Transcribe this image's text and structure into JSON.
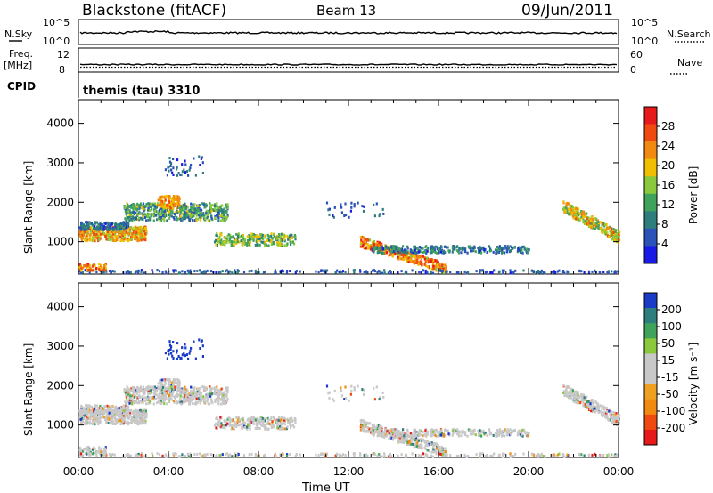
{
  "header": {
    "radar": "Blackstone (fitACF)",
    "beam": "Beam 13",
    "date": "09/Jun/2011"
  },
  "top_panels": {
    "nsky_label": "N.Sky",
    "nsky_ticks": [
      "10^5",
      "10^0"
    ],
    "nsearch_label": "N.Search",
    "nsearch_ticks": [
      "10^5",
      "10^0"
    ],
    "freq_label": "Freq.",
    "freq_unit": "[MHz]",
    "freq_ticks": [
      "12",
      "8"
    ],
    "nave_label": "Nave",
    "nave_ticks": [
      "60",
      "0"
    ],
    "cpid_label": "CPID",
    "cpid_value": "themis (tau) 3310"
  },
  "colors": {
    "power_scale": [
      "#1a1ae6",
      "#2a52b8",
      "#2f7e7e",
      "#3fa35c",
      "#8ac83c",
      "#f0c000",
      "#f38a10",
      "#f04a10",
      "#e61a1a"
    ],
    "velocity_scale": [
      "#e61a1a",
      "#f04a10",
      "#f38a10",
      "#f0a020",
      "#c8c8c8",
      "#c8c8c8",
      "#8ac83c",
      "#3fa35c",
      "#2f7e7e",
      "#1a3ac8"
    ]
  },
  "chart_data": [
    {
      "type": "heatmap",
      "panel": "power",
      "ylabel": "Slant Range [km]",
      "yticks": [
        "4000",
        "3000",
        "2000",
        "1000"
      ],
      "ylim": [
        180,
        4600
      ],
      "xlim": [
        0,
        24
      ],
      "xticks": [
        "00:00",
        "04:00",
        "08:00",
        "12:00",
        "16:00",
        "20:00",
        "00:00"
      ],
      "colorbar_label": "Power [dB]",
      "colorbar_ticks": [
        "28",
        "24",
        "20",
        "16",
        "12",
        "8",
        "4"
      ]
    },
    {
      "type": "heatmap",
      "panel": "velocity",
      "ylabel": "Slant Range [km]",
      "yticks": [
        "4000",
        "3000",
        "2000",
        "1000"
      ],
      "ylim": [
        180,
        4600
      ],
      "xlim": [
        0,
        24
      ],
      "xticks": [
        "00:00",
        "04:00",
        "08:00",
        "12:00",
        "16:00",
        "20:00",
        "00:00"
      ],
      "xlabel": "Time UT",
      "colorbar_label": "Velocity [m s⁻¹]",
      "colorbar_ticks": [
        "200",
        "100",
        "50",
        "15",
        "-15",
        "-50",
        "-100",
        "-200"
      ]
    }
  ]
}
